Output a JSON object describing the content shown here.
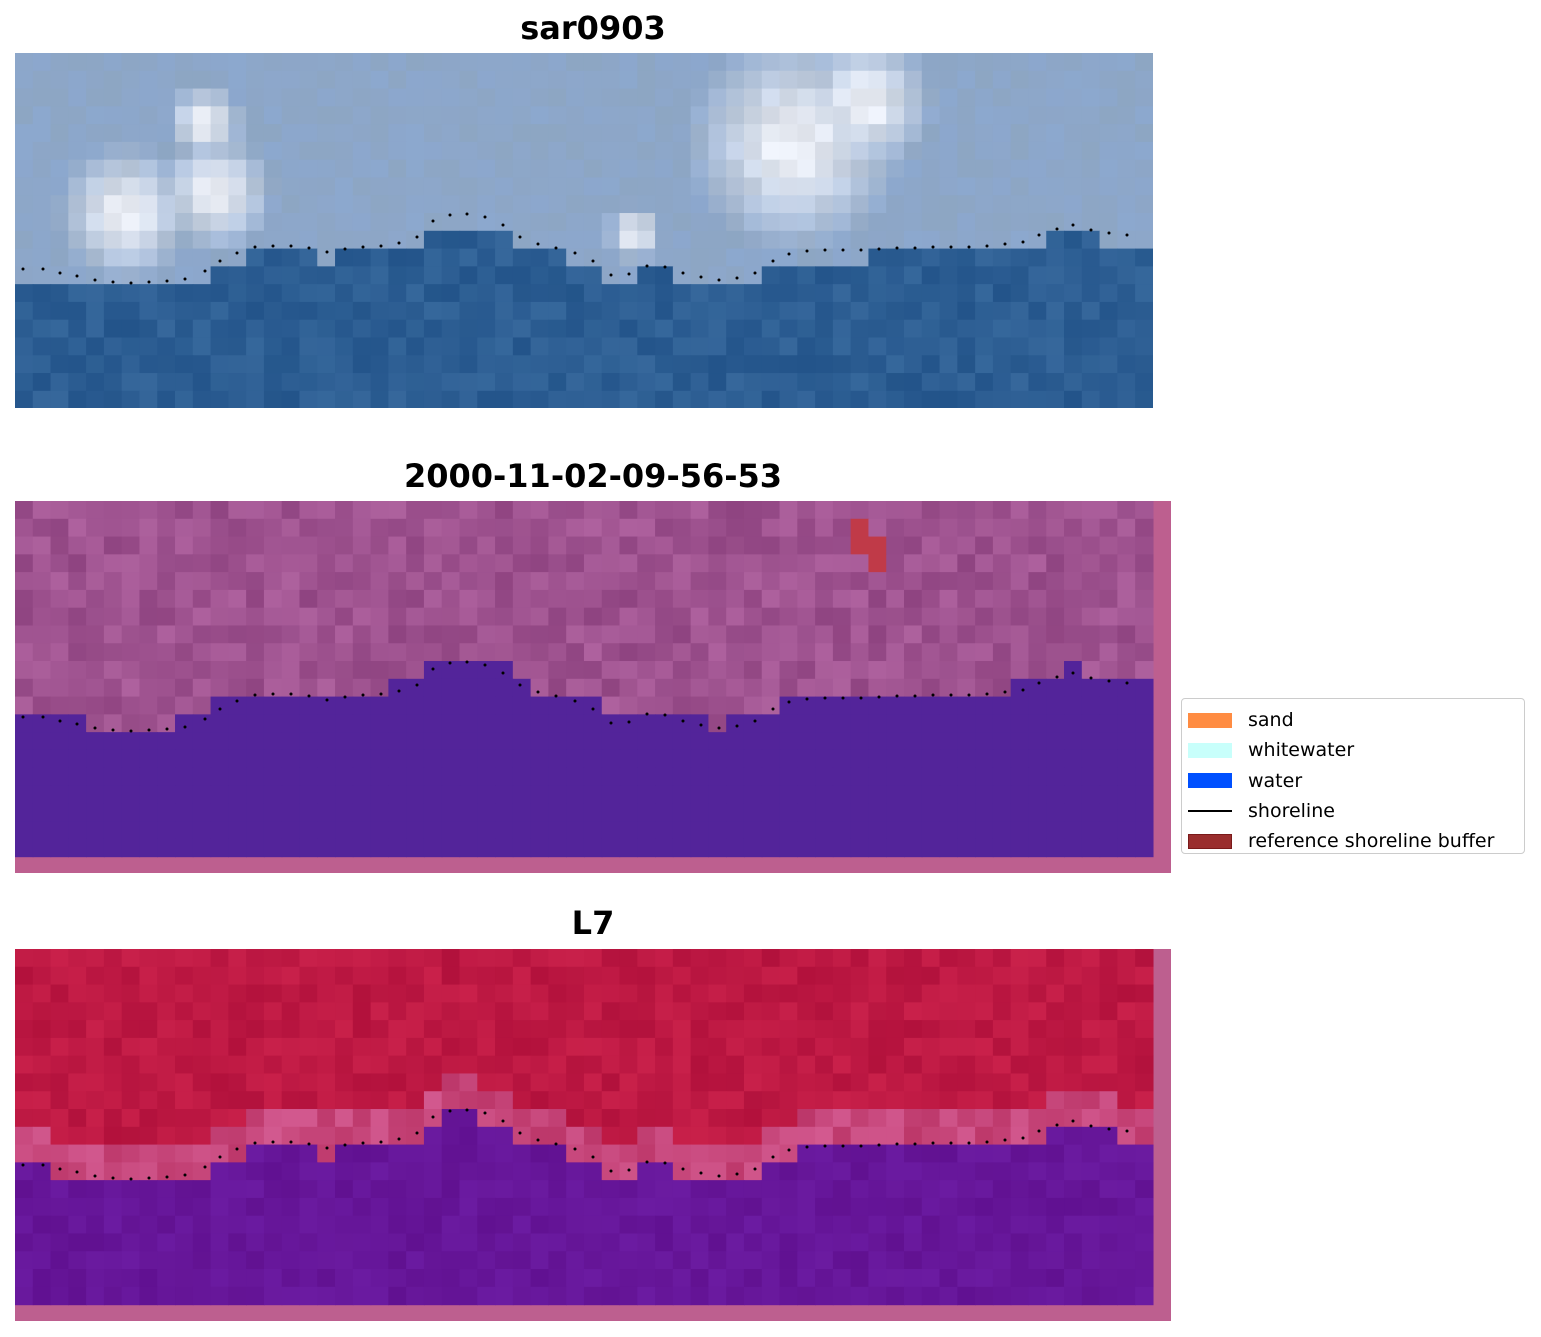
{
  "panels": [
    {
      "id": "rgb",
      "title": "sar0903"
    },
    {
      "id": "classified",
      "title": "2000-11-02-09-56-53"
    },
    {
      "id": "index",
      "title": "L7"
    }
  ],
  "legend": {
    "items": [
      {
        "label": "sand",
        "kind": "patch",
        "color": "#ff8c42"
      },
      {
        "label": "whitewater",
        "kind": "patch",
        "color": "#c8fffb"
      },
      {
        "label": "water",
        "kind": "patch",
        "color": "#0050ff"
      },
      {
        "label": "shoreline",
        "kind": "line",
        "color": "#000000"
      },
      {
        "label": "reference shoreline buffer",
        "kind": "patch",
        "color": "#9a2e2e",
        "edge": "#7a1a1a"
      }
    ]
  },
  "colors": {
    "rgb_water": "#2e5f95",
    "rgb_land": "#9ab2cf",
    "rgb_cloud": "#e8ecf4",
    "classified_land": "#9a4f8c",
    "classified_water": "#53249a",
    "classified_buffer": "#c03a48",
    "index_land": "#bb1a45",
    "index_water": "#6a1a9a",
    "border_pink": "#bd5f8f",
    "shoreline_dots": "#000000"
  }
}
